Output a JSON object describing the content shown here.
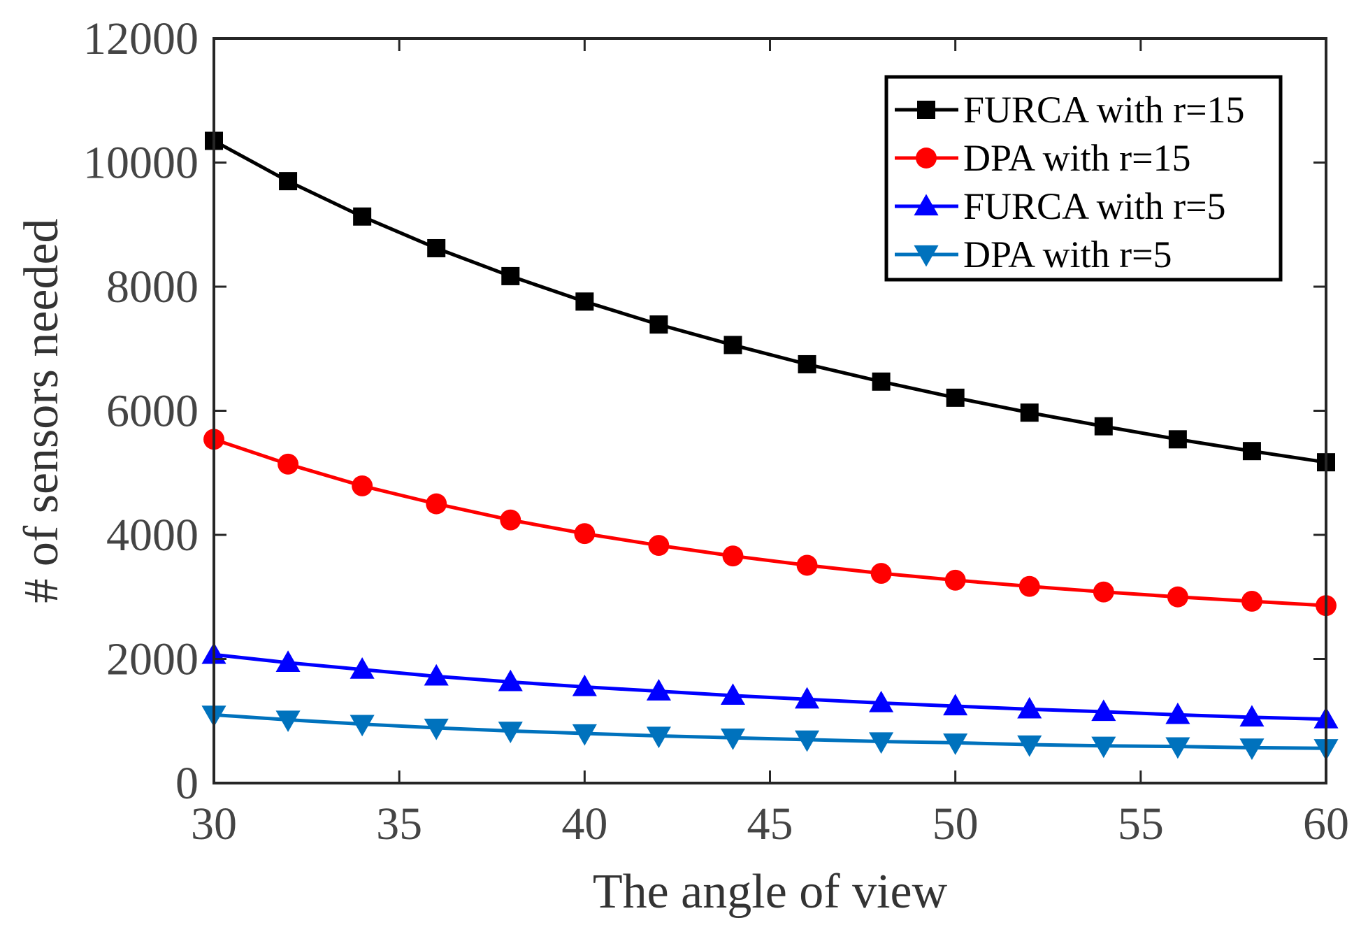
{
  "chart_data": {
    "type": "line",
    "title": "",
    "xlabel": "The angle of view",
    "ylabel": "# of sensors needed",
    "xlim": [
      30,
      60
    ],
    "ylim": [
      0,
      12000
    ],
    "x_ticks": [
      30,
      35,
      40,
      45,
      50,
      55,
      60
    ],
    "y_ticks": [
      0,
      2000,
      4000,
      6000,
      8000,
      10000,
      12000
    ],
    "grid": false,
    "legend_position": "top-right",
    "x": [
      30,
      32,
      34,
      36,
      38,
      40,
      42,
      44,
      46,
      48,
      50,
      52,
      54,
      56,
      58,
      60
    ],
    "series": [
      {
        "name": "FURCA with r=15",
        "color": "#000000",
        "marker": "square",
        "values": [
          10350,
          9700,
          9130,
          8620,
          8170,
          7760,
          7390,
          7060,
          6750,
          6470,
          6210,
          5970,
          5750,
          5540,
          5350,
          5170
        ]
      },
      {
        "name": "DPA with r=15",
        "color": "#ff0000",
        "marker": "circle",
        "values": [
          5540,
          5140,
          4790,
          4500,
          4240,
          4020,
          3830,
          3660,
          3510,
          3380,
          3270,
          3170,
          3080,
          3000,
          2930,
          2860
        ]
      },
      {
        "name": "FURCA with r=5",
        "color": "#0000ff",
        "marker": "triangle-up",
        "values": [
          2070,
          1940,
          1830,
          1720,
          1630,
          1550,
          1480,
          1410,
          1350,
          1290,
          1240,
          1190,
          1150,
          1100,
          1060,
          1030
        ]
      },
      {
        "name": "DPA with r=5",
        "color": "#0072bd",
        "marker": "triangle-down",
        "values": [
          1100,
          1020,
          950,
          890,
          840,
          800,
          760,
          730,
          700,
          670,
          650,
          620,
          600,
          590,
          570,
          560
        ]
      }
    ]
  }
}
